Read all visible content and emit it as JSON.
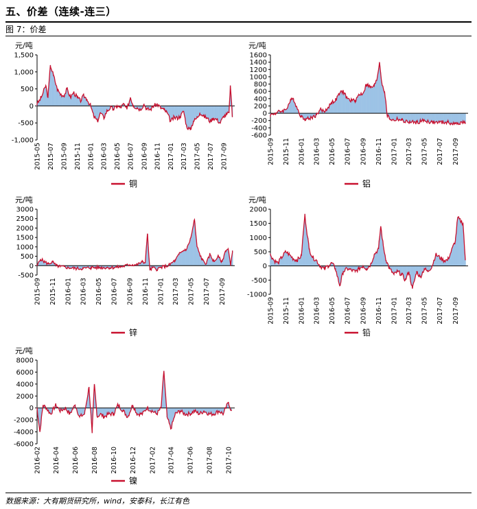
{
  "header": {
    "section_title": "五、价差（连续-连三）",
    "figure_label": "图 7：价差"
  },
  "footer": {
    "source": "数据来源：大有期货研究所，wind，安泰科，长江有色"
  },
  "colors": {
    "line": "#c8102e",
    "bar": "#9dc3e6",
    "axis": "#000000"
  },
  "chart_data": [
    {
      "id": "copper",
      "type": "area",
      "unit": "元/吨",
      "ylim": [
        -1000,
        1500
      ],
      "yticks": [
        -1000,
        -500,
        0,
        500,
        1000,
        1500
      ],
      "ytick_labels": [
        "-1,000",
        "-500",
        "0",
        "500",
        "1,000",
        "1,500"
      ],
      "xticks": [
        "2015-05",
        "2015-07",
        "2015-09",
        "2015-11",
        "2016-01",
        "2016-03",
        "2016-05",
        "2016-07",
        "2016-09",
        "2016-11",
        "2017-01",
        "2017-03",
        "2017-05",
        "2017-07",
        "2017-09"
      ],
      "xstart": "2015-05",
      "xend": "2017-10",
      "legend": "铜",
      "series": [
        {
          "name": "铜",
          "x": [
            "2015-05-01",
            "2015-05-20",
            "2015-06-10",
            "2015-06-20",
            "2015-07-01",
            "2015-07-15",
            "2015-08-01",
            "2015-08-15",
            "2015-09-01",
            "2015-09-15",
            "2015-10-01",
            "2015-10-15",
            "2015-11-01",
            "2015-11-15",
            "2015-12-01",
            "2015-12-15",
            "2016-01-01",
            "2016-01-15",
            "2016-02-01",
            "2016-02-15",
            "2016-03-01",
            "2016-03-15",
            "2016-04-01",
            "2016-04-15",
            "2016-05-01",
            "2016-05-15",
            "2016-06-01",
            "2016-06-15",
            "2016-07-01",
            "2016-07-15",
            "2016-08-01",
            "2016-08-15",
            "2016-09-01",
            "2016-09-15",
            "2016-10-01",
            "2016-10-15",
            "2016-11-01",
            "2016-11-15",
            "2016-12-01",
            "2016-12-15",
            "2017-01-01",
            "2017-01-15",
            "2017-02-01",
            "2017-02-15",
            "2017-03-01",
            "2017-03-15",
            "2017-04-01",
            "2017-04-15",
            "2017-05-01",
            "2017-05-15",
            "2017-06-01",
            "2017-06-15",
            "2017-07-01",
            "2017-07-15",
            "2017-08-01",
            "2017-08-15",
            "2017-09-01",
            "2017-09-15",
            "2017-09-25",
            "2017-10-01",
            "2017-10-10"
          ],
          "y": [
            50,
            250,
            600,
            250,
            1200,
            900,
            500,
            350,
            300,
            500,
            250,
            400,
            250,
            150,
            300,
            200,
            0,
            -300,
            -450,
            -200,
            -350,
            -150,
            -50,
            -100,
            0,
            -50,
            50,
            -100,
            250,
            0,
            -50,
            -100,
            50,
            -100,
            -100,
            0,
            50,
            -50,
            -100,
            -200,
            -450,
            -350,
            -350,
            -300,
            -150,
            -600,
            -700,
            -450,
            -350,
            -200,
            -300,
            -350,
            -450,
            -350,
            -400,
            -500,
            -300,
            -250,
            -200,
            600,
            -300
          ]
        }
      ]
    },
    {
      "id": "aluminum",
      "type": "area",
      "unit": "元/吨",
      "ylim": [
        -600,
        1600
      ],
      "yticks": [
        -600,
        -400,
        -200,
        0,
        200,
        400,
        600,
        800,
        1000,
        1200,
        1400,
        1600
      ],
      "ytick_labels": [
        "-600",
        "-400",
        "-200",
        "0",
        "200",
        "400",
        "600",
        "800",
        "1000",
        "1200",
        "1400",
        "1600"
      ],
      "xticks": [
        "2015-09",
        "2015-11",
        "2016-01",
        "2016-03",
        "2016-05",
        "2016-07",
        "2016-09",
        "2016-11",
        "2017-01",
        "2017-03",
        "2017-05",
        "2017-07",
        "2017-09"
      ],
      "xstart": "2015-09",
      "xend": "2017-10",
      "legend": "铝",
      "series": [
        {
          "name": "铝",
          "x": [
            "2015-09-01",
            "2015-09-20",
            "2015-10-10",
            "2015-11-01",
            "2015-11-20",
            "2015-12-01",
            "2015-12-15",
            "2016-01-01",
            "2016-01-15",
            "2016-02-01",
            "2016-02-15",
            "2016-03-01",
            "2016-03-15",
            "2016-04-01",
            "2016-04-15",
            "2016-05-01",
            "2016-05-15",
            "2016-06-01",
            "2016-06-15",
            "2016-07-01",
            "2016-07-15",
            "2016-08-01",
            "2016-08-15",
            "2016-09-01",
            "2016-09-15",
            "2016-10-01",
            "2016-10-15",
            "2016-10-25",
            "2016-11-05",
            "2016-11-15",
            "2016-11-25",
            "2016-12-05",
            "2016-12-15",
            "2017-01-01",
            "2017-01-15",
            "2017-02-01",
            "2017-03-01",
            "2017-04-01",
            "2017-05-01",
            "2017-06-01",
            "2017-07-01",
            "2017-08-01",
            "2017-09-01",
            "2017-09-20",
            "2017-10-10"
          ],
          "y": [
            -50,
            0,
            50,
            100,
            350,
            400,
            150,
            -100,
            -150,
            -150,
            -100,
            -50,
            100,
            50,
            150,
            300,
            350,
            550,
            600,
            400,
            350,
            350,
            500,
            550,
            800,
            700,
            750,
            900,
            1400,
            800,
            600,
            -50,
            -150,
            -200,
            -150,
            -200,
            -250,
            -250,
            -200,
            -250,
            -250,
            -250,
            -300,
            -250,
            -250
          ]
        }
      ]
    },
    {
      "id": "zinc",
      "type": "area",
      "unit": "元/吨",
      "ylim": [
        -500,
        3000
      ],
      "yticks": [
        -500,
        0,
        500,
        1000,
        1500,
        2000,
        2500,
        3000
      ],
      "ytick_labels": [
        "-500",
        "0",
        "500",
        "1000",
        "1500",
        "2000",
        "2500",
        "3000"
      ],
      "xticks": [
        "2015-09",
        "2015-11",
        "2016-01",
        "2016-03",
        "2016-05",
        "2016-07",
        "2016-09",
        "2016-11",
        "2017-01",
        "2017-03",
        "2017-05",
        "2017-07",
        "2017-09"
      ],
      "xstart": "2015-09",
      "xend": "2017-10",
      "legend": "锌",
      "series": [
        {
          "name": "锌",
          "x": [
            "2015-09-01",
            "2015-09-15",
            "2015-10-01",
            "2015-10-15",
            "2015-11-01",
            "2015-11-15",
            "2015-12-01",
            "2016-01-01",
            "2016-02-01",
            "2016-03-01",
            "2016-04-01",
            "2016-05-01",
            "2016-06-01",
            "2016-07-01",
            "2016-08-01",
            "2016-09-01",
            "2016-10-01",
            "2016-10-20",
            "2016-11-01",
            "2016-11-10",
            "2016-11-20",
            "2016-12-01",
            "2016-12-15",
            "2017-01-01",
            "2017-01-15",
            "2017-02-01",
            "2017-02-15",
            "2017-03-01",
            "2017-03-15",
            "2017-04-01",
            "2017-04-15",
            "2017-05-01",
            "2017-05-15",
            "2017-05-25",
            "2017-06-05",
            "2017-06-15",
            "2017-07-01",
            "2017-07-15",
            "2017-08-01",
            "2017-08-15",
            "2017-09-01",
            "2017-09-15",
            "2017-09-25",
            "2017-10-05",
            "2017-10-12"
          ],
          "y": [
            0,
            350,
            200,
            100,
            200,
            0,
            -50,
            -100,
            -150,
            -150,
            -100,
            -100,
            -100,
            -100,
            -50,
            50,
            50,
            200,
            150,
            1700,
            -250,
            -100,
            -200,
            -100,
            -50,
            0,
            150,
            300,
            600,
            800,
            900,
            1500,
            2450,
            1000,
            600,
            300,
            100,
            600,
            200,
            500,
            200,
            800,
            900,
            0,
            800
          ]
        }
      ]
    },
    {
      "id": "lead",
      "type": "area",
      "unit": "元/吨",
      "ylim": [
        -1000,
        2000
      ],
      "yticks": [
        -1000,
        -500,
        0,
        500,
        1000,
        1500,
        2000
      ],
      "ytick_labels": [
        "-1000",
        "-500",
        "0",
        "500",
        "1000",
        "1500",
        "2000"
      ],
      "xticks": [
        "2015-09",
        "2015-11",
        "2016-01",
        "2016-03",
        "2016-05",
        "2016-07",
        "2016-09",
        "2016-11",
        "2017-01",
        "2017-03",
        "2017-05",
        "2017-07",
        "2017-09"
      ],
      "xstart": "2015-09",
      "xend": "2017-10",
      "legend": "铅",
      "series": [
        {
          "name": "铅",
          "x": [
            "2015-09-01",
            "2015-09-15",
            "2015-10-01",
            "2015-10-15",
            "2015-11-01",
            "2015-11-15",
            "2015-12-01",
            "2015-12-15",
            "2016-01-01",
            "2016-01-15",
            "2016-02-01",
            "2016-02-15",
            "2016-03-01",
            "2016-03-15",
            "2016-04-01",
            "2016-04-15",
            "2016-05-01",
            "2016-05-15",
            "2016-06-01",
            "2016-06-15",
            "2016-07-01",
            "2016-08-01",
            "2016-08-15",
            "2016-09-01",
            "2016-09-15",
            "2016-10-01",
            "2016-10-15",
            "2016-11-01",
            "2016-11-10",
            "2016-11-20",
            "2016-12-01",
            "2016-12-15",
            "2017-01-01",
            "2017-01-15",
            "2017-02-01",
            "2017-02-15",
            "2017-03-01",
            "2017-03-15",
            "2017-04-01",
            "2017-04-15",
            "2017-05-01",
            "2017-05-15",
            "2017-06-01",
            "2017-06-15",
            "2017-07-01",
            "2017-07-15",
            "2017-08-01",
            "2017-08-15",
            "2017-09-01",
            "2017-09-10",
            "2017-09-20",
            "2017-10-01",
            "2017-10-10"
          ],
          "y": [
            400,
            200,
            100,
            300,
            500,
            400,
            250,
            200,
            350,
            1800,
            600,
            300,
            200,
            0,
            -100,
            0,
            100,
            -100,
            -700,
            -200,
            -100,
            -200,
            -100,
            0,
            -100,
            50,
            400,
            600,
            1400,
            700,
            200,
            -100,
            -300,
            -200,
            -300,
            -500,
            -200,
            -800,
            -200,
            -400,
            -100,
            -200,
            0,
            400,
            300,
            200,
            200,
            500,
            900,
            1700,
            1600,
            1500,
            200
          ]
        }
      ]
    },
    {
      "id": "nickel",
      "type": "area",
      "unit": "元/吨",
      "ylim": [
        -6000,
        8000
      ],
      "yticks": [
        -6000,
        -4000,
        -2000,
        0,
        2000,
        4000,
        6000,
        8000
      ],
      "ytick_labels": [
        "-6000",
        "-4000",
        "-2000",
        "0",
        "2000",
        "4000",
        "6000",
        "8000"
      ],
      "xticks": [
        "2016-02",
        "2016-04",
        "2016-06",
        "2016-08",
        "2016-10",
        "2016-12",
        "2017-02",
        "2017-04",
        "2017-06",
        "2017-08",
        "2017-10"
      ],
      "xstart": "2016-02",
      "xend": "2017-10",
      "legend": "镍",
      "series": [
        {
          "name": "镍",
          "x": [
            "2016-02-01",
            "2016-02-10",
            "2016-02-20",
            "2016-03-01",
            "2016-03-15",
            "2016-04-01",
            "2016-04-15",
            "2016-05-01",
            "2016-05-15",
            "2016-06-01",
            "2016-06-15",
            "2016-07-01",
            "2016-07-15",
            "2016-07-25",
            "2016-08-01",
            "2016-08-10",
            "2016-08-20",
            "2016-09-01",
            "2016-09-15",
            "2016-10-01",
            "2016-10-15",
            "2016-11-01",
            "2016-11-15",
            "2016-12-01",
            "2016-12-15",
            "2017-01-01",
            "2017-01-15",
            "2017-02-01",
            "2017-02-15",
            "2017-03-01",
            "2017-03-10",
            "2017-03-20",
            "2017-04-01",
            "2017-04-15",
            "2017-05-01",
            "2017-05-15",
            "2017-06-01",
            "2017-06-15",
            "2017-07-01",
            "2017-07-15",
            "2017-08-01",
            "2017-08-15",
            "2017-09-01",
            "2017-09-15",
            "2017-10-01",
            "2017-10-10"
          ],
          "y": [
            0,
            -4000,
            500,
            0,
            -1000,
            500,
            -500,
            0,
            -1000,
            500,
            -1500,
            -1000,
            3500,
            -4200,
            4000,
            -1500,
            -1000,
            -1500,
            -1000,
            -1000,
            500,
            -500,
            -1500,
            500,
            -1000,
            -1000,
            0,
            -500,
            -1000,
            0,
            6200,
            -1500,
            -3500,
            -1000,
            -500,
            -1000,
            -1000,
            -500,
            -1000,
            -500,
            -1000,
            -1000,
            -500,
            -1000,
            1000,
            -500
          ]
        }
      ]
    }
  ]
}
